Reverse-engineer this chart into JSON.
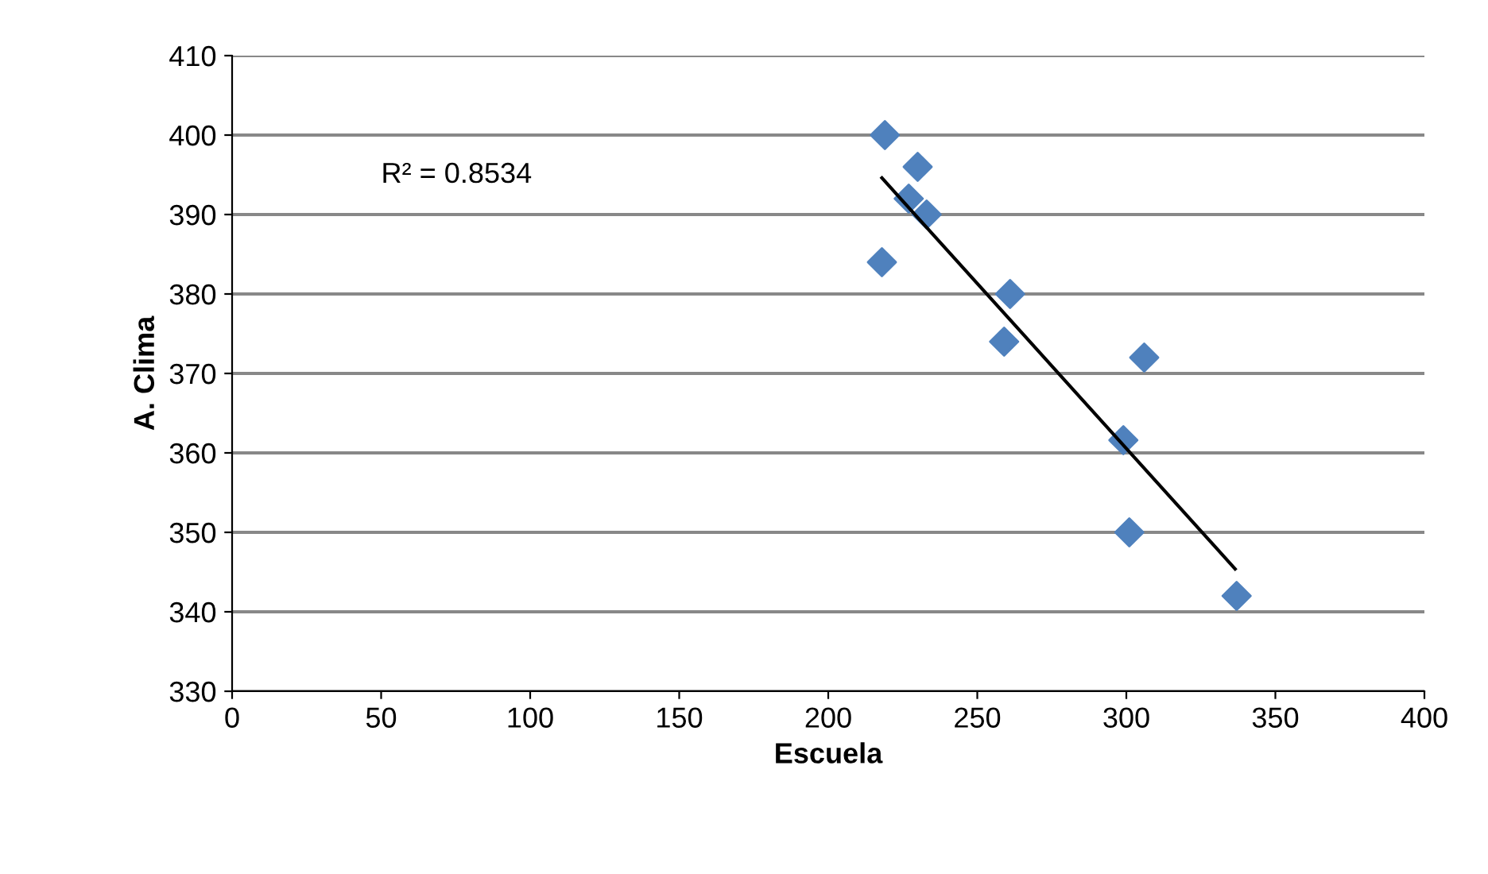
{
  "chart_data": {
    "type": "scatter",
    "xlabel": "Escuela",
    "ylabel": "A. Clima",
    "xlim": [
      0,
      400
    ],
    "ylim": [
      330,
      410
    ],
    "xticks": [
      0,
      50,
      100,
      150,
      200,
      250,
      300,
      350,
      400
    ],
    "yticks": [
      330,
      340,
      350,
      360,
      370,
      380,
      390,
      400,
      410
    ],
    "grid": "y",
    "annotations": [
      "R² = 0.8534"
    ],
    "series": [
      {
        "marker": "diamond",
        "color": "#4f81bd",
        "x": [
          219,
          230,
          227,
          233,
          218,
          261,
          259,
          306,
          299,
          301,
          337
        ],
        "values": [
          400,
          396,
          392,
          390,
          384,
          380,
          374,
          372,
          361.6,
          350,
          342
        ]
      },
      {
        "type": "line",
        "marker": "none",
        "color": "#000000",
        "x": [
          218,
          336.5
        ],
        "values": [
          394.6,
          345.4
        ]
      }
    ]
  }
}
